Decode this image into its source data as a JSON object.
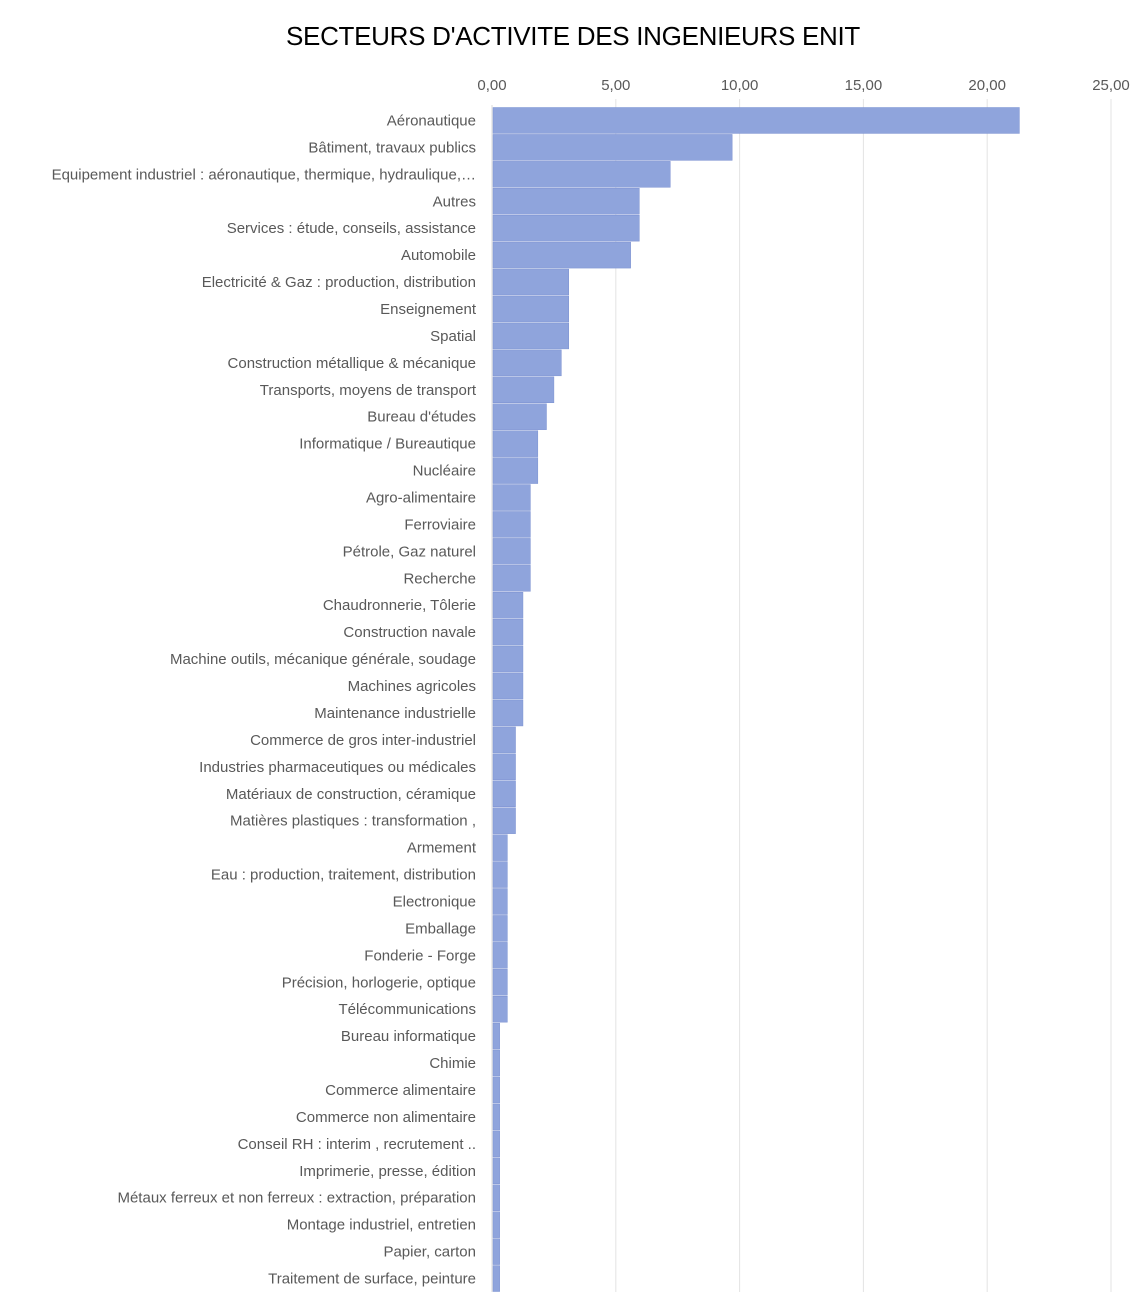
{
  "chart_data": {
    "type": "bar",
    "orientation": "horizontal",
    "title": "SECTEURS D'ACTIVITE DES INGENIEURS ENIT",
    "xlabel": "",
    "ylabel": "",
    "xlim": [
      0,
      25
    ],
    "x_ticks": [
      "0,00",
      "5,00",
      "10,00",
      "15,00",
      "20,00",
      "25,00"
    ],
    "x_axis_position": "top",
    "grid": true,
    "legend": "none",
    "bar_color": "#8FA4DC",
    "categories": [
      "Aéronautique",
      "Bâtiment, travaux publics",
      "Equipement industriel : aéronautique, thermique, hydraulique,…",
      "Autres",
      "Services : étude, conseils, assistance",
      "Automobile",
      "Electricité & Gaz : production, distribution",
      "Enseignement",
      "Spatial",
      "Construction métallique & mécanique",
      "Transports, moyens de transport",
      "Bureau d'études",
      "Informatique / Bureautique",
      "Nucléaire",
      "Agro-alimentaire",
      "Ferroviaire",
      "Pétrole, Gaz naturel",
      "Recherche",
      "Chaudronnerie, Tôlerie",
      "Construction navale",
      "Machine outils, mécanique générale, soudage",
      "Machines agricoles",
      "Maintenance industrielle",
      "Commerce de gros inter-industriel",
      "Industries pharmaceutiques ou médicales",
      "Matériaux de construction, céramique",
      "Matières plastiques : transformation ,",
      "Armement",
      "Eau : production, traitement, distribution",
      "Electronique",
      "Emballage",
      "Fonderie - Forge",
      "Précision, horlogerie, optique",
      "Télécommunications",
      "Bureau informatique",
      "Chimie",
      "Commerce alimentaire",
      "Commerce non alimentaire",
      "Conseil RH : interim , recrutement ..",
      "Imprimerie, presse, édition",
      "Métaux ferreux et non ferreux : extraction, préparation",
      "Montage industriel, entretien",
      "Papier, carton",
      "Traitement de surface, peinture"
    ],
    "values": [
      21.3,
      9.7,
      7.2,
      5.95,
      5.95,
      5.6,
      3.1,
      3.1,
      3.1,
      2.8,
      2.5,
      2.2,
      1.85,
      1.85,
      1.55,
      1.55,
      1.55,
      1.55,
      1.25,
      1.25,
      1.25,
      1.25,
      1.25,
      0.95,
      0.95,
      0.95,
      0.95,
      0.62,
      0.62,
      0.62,
      0.62,
      0.62,
      0.62,
      0.62,
      0.31,
      0.31,
      0.31,
      0.31,
      0.31,
      0.31,
      0.31,
      0.31,
      0.31,
      0.31
    ]
  }
}
